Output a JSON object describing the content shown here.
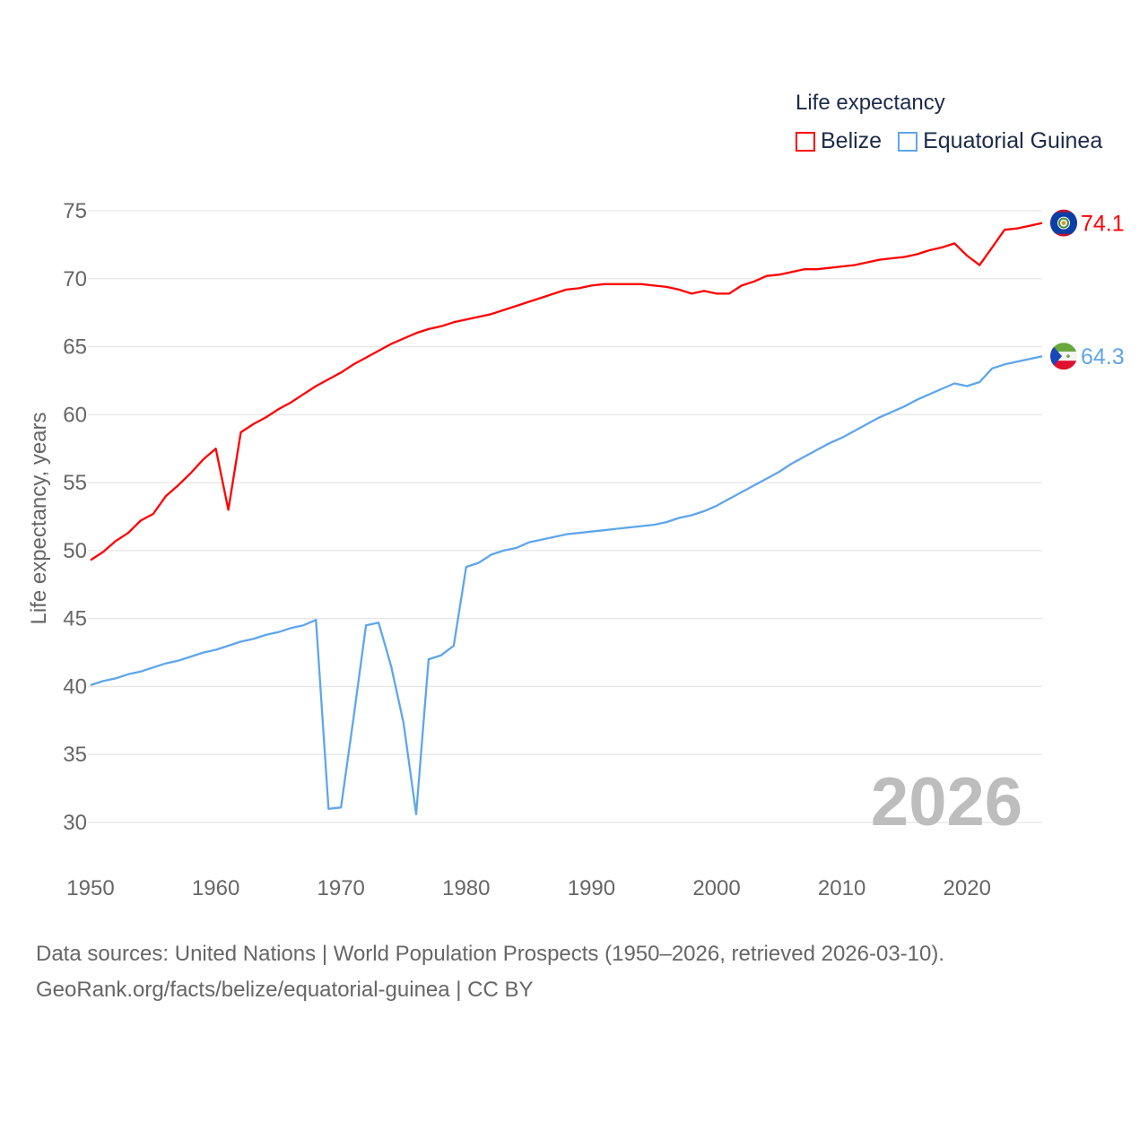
{
  "chart_data": {
    "type": "line",
    "title": "Life expectancy",
    "xlabel": "",
    "ylabel": "Life expectancy, years",
    "xlim": [
      1950,
      2026
    ],
    "ylim": [
      30,
      75
    ],
    "xticks": [
      1950,
      1960,
      1970,
      1980,
      1990,
      2000,
      2010,
      2020
    ],
    "yticks": [
      30,
      35,
      40,
      45,
      50,
      55,
      60,
      65,
      70,
      75
    ],
    "grid": true,
    "legend_placement": "top-right",
    "year_label": "2026",
    "x_start": 1950,
    "series": [
      {
        "name": "Belize",
        "color": "#ff0000",
        "end_label": "74.1",
        "flag": "belize-flag",
        "values": [
          49.3,
          49.9,
          50.7,
          51.3,
          52.2,
          52.7,
          54.0,
          54.8,
          55.7,
          56.7,
          57.5,
          53.0,
          58.7,
          59.3,
          59.8,
          60.4,
          60.9,
          61.5,
          62.1,
          62.6,
          63.1,
          63.7,
          64.2,
          64.7,
          65.2,
          65.6,
          66.0,
          66.3,
          66.5,
          66.8,
          67.0,
          67.2,
          67.4,
          67.7,
          68.0,
          68.3,
          68.6,
          68.9,
          69.2,
          69.3,
          69.5,
          69.6,
          69.6,
          69.6,
          69.6,
          69.5,
          69.4,
          69.2,
          68.9,
          69.1,
          68.9,
          68.9,
          69.5,
          69.8,
          70.2,
          70.3,
          70.5,
          70.7,
          70.7,
          70.8,
          70.9,
          71.0,
          71.2,
          71.4,
          71.5,
          71.6,
          71.8,
          72.1,
          72.3,
          72.6,
          71.7,
          71.0,
          72.3,
          73.6,
          73.7,
          73.9,
          74.1
        ]
      },
      {
        "name": "Equatorial Guinea",
        "color": "#5ea6ea",
        "end_label": "64.3",
        "flag": "equatorial-guinea-flag",
        "values": [
          40.1,
          40.4,
          40.6,
          40.9,
          41.1,
          41.4,
          41.7,
          41.9,
          42.2,
          42.5,
          42.7,
          43.0,
          43.3,
          43.5,
          43.8,
          44.0,
          44.3,
          44.5,
          44.9,
          31.0,
          31.1,
          37.7,
          44.5,
          44.7,
          41.5,
          37.3,
          30.6,
          42.0,
          42.3,
          43.0,
          48.8,
          49.1,
          49.7,
          50.0,
          50.2,
          50.6,
          50.8,
          51.0,
          51.2,
          51.3,
          51.4,
          51.5,
          51.6,
          51.7,
          51.8,
          51.9,
          52.1,
          52.4,
          52.6,
          52.9,
          53.3,
          53.8,
          54.3,
          54.8,
          55.3,
          55.8,
          56.4,
          56.9,
          57.4,
          57.9,
          58.3,
          58.8,
          59.3,
          59.8,
          60.2,
          60.6,
          61.1,
          61.5,
          61.9,
          62.3,
          62.1,
          62.4,
          63.4,
          63.7,
          63.9,
          64.1,
          64.3
        ]
      }
    ]
  },
  "legend": {
    "title": "Life expectancy",
    "items": [
      "Belize",
      "Equatorial Guinea"
    ]
  },
  "footer": {
    "line1": "Data sources: United Nations | World Population Prospects (1950–2026, retrieved 2026-03-10).",
    "line2": "GeoRank.org/facts/belize/equatorial-guinea | CC BY"
  }
}
